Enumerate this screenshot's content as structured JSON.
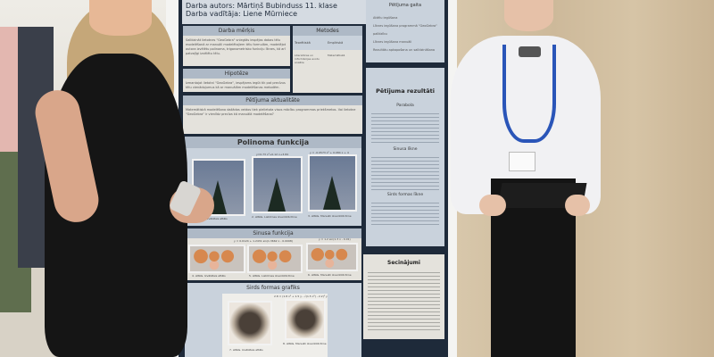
{
  "poster": {
    "author": "Darba autors: Mārtiņš Bubinduss 11. klase",
    "supervisor": "Darba vadītāja: Liene Mūrniece",
    "goal": {
      "title": "Darba mērķis",
      "text": "Salīdzināt lietotnes \"GeoGebra\" sniegtās iespējas dabas tēlu modelēšanā ar manuāli modelētajiem tēlu formulām, modelējot autora izvēlētu polinoma, trigonometrisko funkciju līknes, kā arī patvaļīgi izvēlētu tēlu."
    },
    "methods": {
      "title": "Metodes",
      "col1": "Teorētiskā",
      "col2": "Empīriskā",
      "item1": "Literatūras un informācijas avotu analīze",
      "item2": "Matemātiskā"
    },
    "hypothesis": {
      "title": "Hipotēze",
      "text": "Izmantojot lietotni \"GeoGebra\", iespējams iegūt tik pat precīzus tēlu vienādojumus kā ar manuālām modelēšanas metodēm."
    },
    "relevance": {
      "title": "Pētījuma aktualitāte",
      "text": "Matemātiskā modelēšana dažādos veidos tiek pielietota visos mācību programmas priekšmetos. Vai lietotne \"GeoGebra\" ir vienlīdz precīza kā manuālā modelēšana?"
    },
    "process": {
      "title": "Pētījuma gaita",
      "items": [
        "Attēlu iegūšana",
        "Līknes iegūšana programmā \"GeoGebra\" palīdzību",
        "Līknes iegūšana manuāli",
        "Rezultātu apkopošana un salīdzināšana"
      ]
    },
    "polynomial": {
      "title": "Polinoma funkcija",
      "formula1": "y=0.73 x²+0.12 x+3.84",
      "formula2": "y = -0.0573 x² + 0.084 x + 4",
      "captions": [
        "1. attēls. Izvēlētais attēls",
        "2. attēls. Lietotnes izveidotā līkne",
        "3. attēls. Manuāli izveidotā līkne"
      ]
    },
    "sine": {
      "title": "Sinusa funkcija",
      "formula1": "y = 0.0124 + 1.2431 sin(1.3662 x - 0.0098)",
      "formula2": "y = 1.2 sin(1.3 x - 0.01)",
      "captions": [
        "4. attēls. Izvēlētais attēls",
        "5. attēls. Lietotnes izveidotā līkne",
        "6. attēls. Manuāli izveidotā līkne"
      ]
    },
    "heart": {
      "title": "Sirds formas grafiks",
      "formula": "2.8 = (1.8 x² + 1.5 y - √(1.5 x²) - 2.2)² y",
      "captions": [
        "7. attēls. Izvēlētais attēls",
        "8. attēls. Manuāli izveidotā līkne"
      ]
    },
    "results": {
      "title": "Pētījuma rezultāti",
      "sub1": "Parabola",
      "sub2": "Sinusa līkne",
      "sub3": "Sirds formas līkne"
    },
    "conclusions": {
      "title": "Secinājumi"
    }
  }
}
